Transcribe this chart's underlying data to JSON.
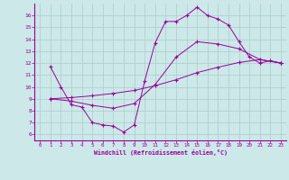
{
  "bg_color": "#cce8e8",
  "line_color": "#990099",
  "grid_color": "#aacccc",
  "xlabel": "Windchill (Refroidissement éolien,°C)",
  "xlabel_color": "#990099",
  "tick_color": "#990099",
  "xlim": [
    -0.5,
    23.5
  ],
  "ylim": [
    5.5,
    17.0
  ],
  "yticks": [
    6,
    7,
    8,
    9,
    10,
    11,
    12,
    13,
    14,
    15,
    16
  ],
  "xticks": [
    0,
    1,
    2,
    3,
    4,
    5,
    6,
    7,
    8,
    9,
    10,
    11,
    12,
    13,
    14,
    15,
    16,
    17,
    18,
    19,
    20,
    21,
    22,
    23
  ],
  "line1_x": [
    1,
    2,
    3,
    4,
    5,
    6,
    7,
    8,
    9,
    10,
    11,
    12,
    13,
    14,
    15,
    16,
    17,
    18,
    19,
    20,
    21,
    22,
    23
  ],
  "line1_y": [
    11.7,
    10.0,
    8.5,
    8.3,
    7.0,
    6.8,
    6.7,
    6.2,
    6.8,
    10.5,
    13.7,
    15.5,
    15.5,
    16.0,
    16.7,
    16.0,
    15.7,
    15.2,
    13.8,
    12.5,
    12.0,
    12.2,
    12.0
  ],
  "line2_x": [
    1,
    3,
    5,
    7,
    9,
    11,
    13,
    15,
    17,
    19,
    21,
    23
  ],
  "line2_y": [
    9.0,
    9.1,
    9.25,
    9.45,
    9.7,
    10.1,
    10.6,
    11.2,
    11.65,
    12.05,
    12.3,
    12.0
  ],
  "line3_x": [
    1,
    3,
    5,
    7,
    9,
    11,
    13,
    15,
    17,
    19,
    21,
    23
  ],
  "line3_y": [
    9.0,
    8.8,
    8.45,
    8.2,
    8.6,
    10.2,
    12.5,
    13.8,
    13.6,
    13.2,
    12.3,
    12.0
  ]
}
